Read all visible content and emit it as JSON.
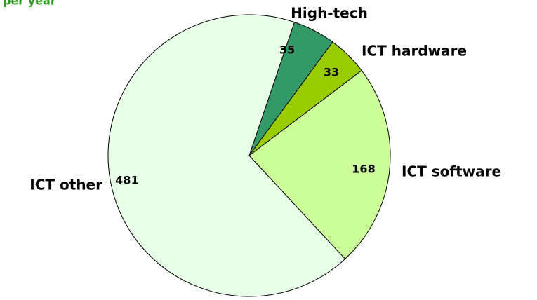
{
  "chart_data": {
    "type": "pie",
    "title": "per year",
    "categories": [
      "High-tech",
      "ICT hardware",
      "ICT software",
      "ICT other"
    ],
    "values": [
      35,
      33,
      168,
      481
    ],
    "colors": [
      "#339966",
      "#99cc00",
      "#ccff99",
      "#e8ffe8"
    ]
  }
}
